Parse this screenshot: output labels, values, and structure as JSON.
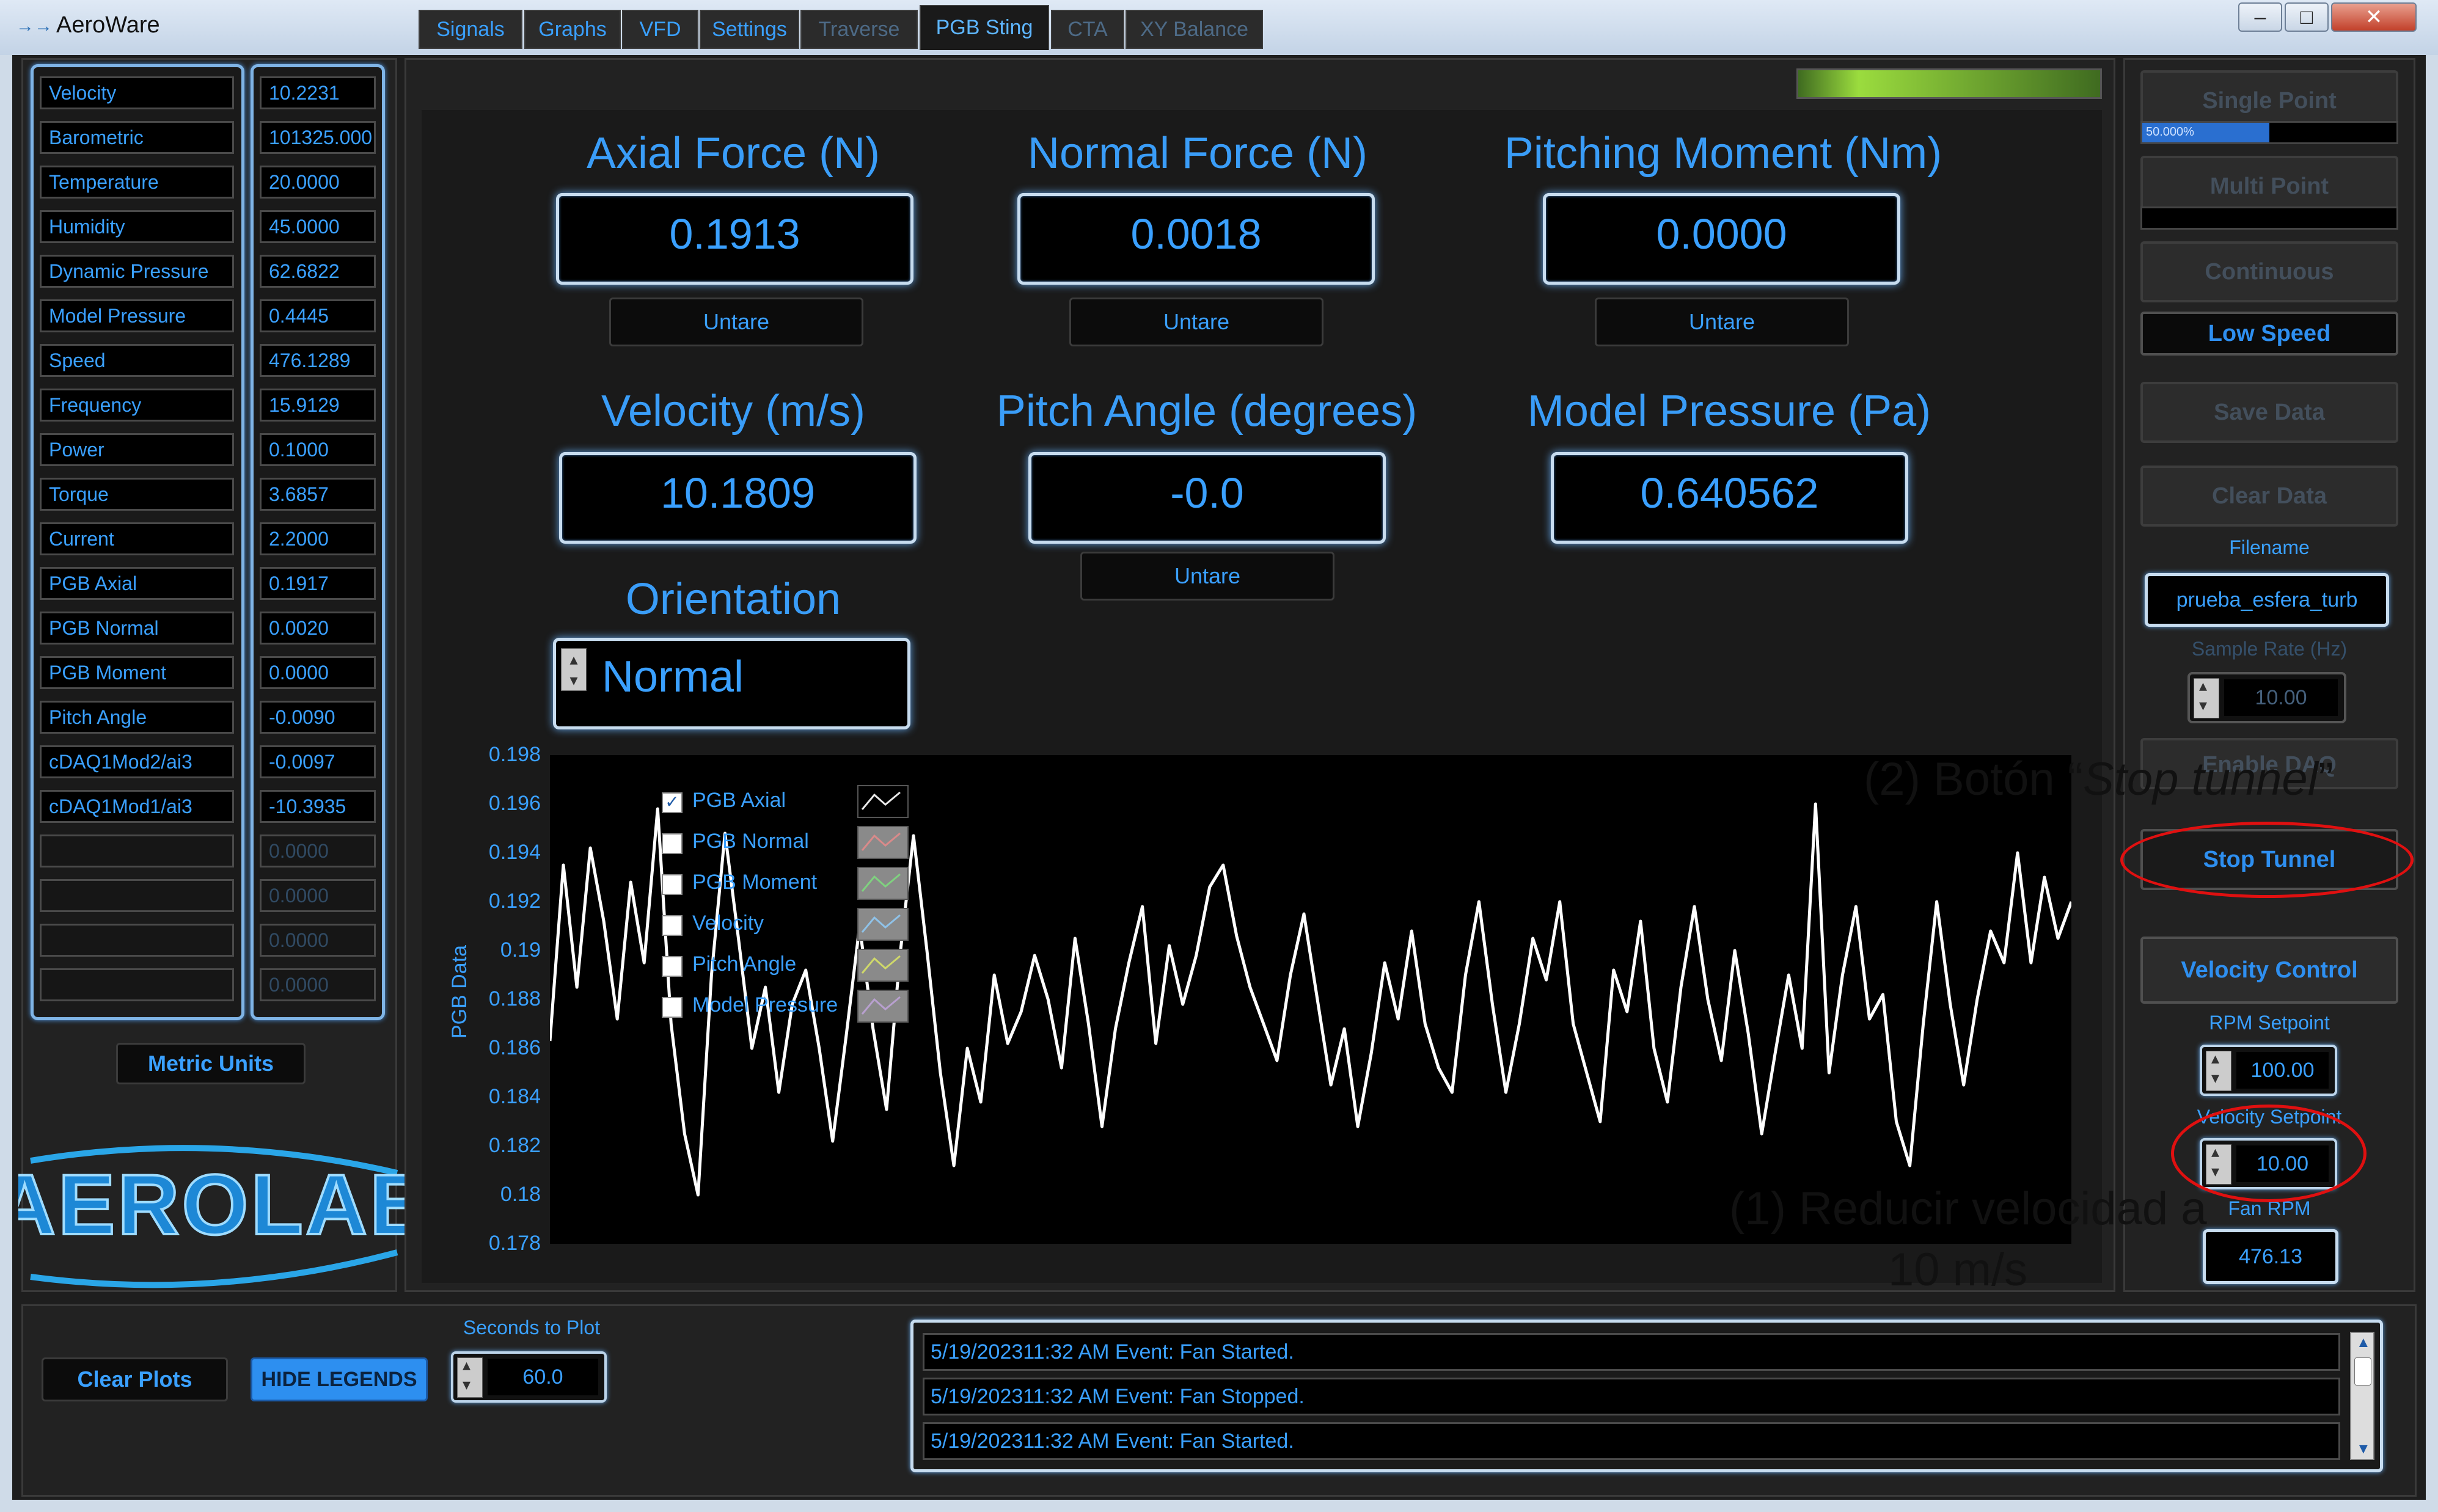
{
  "window": {
    "title": "AeroWare",
    "controls": [
      "minimize",
      "maximize",
      "close"
    ]
  },
  "channels": [
    {
      "label": "Velocity",
      "value": "10.2231"
    },
    {
      "label": "Barometric",
      "value": "101325.000"
    },
    {
      "label": "Temperature",
      "value": "20.0000"
    },
    {
      "label": "Humidity",
      "value": "45.0000"
    },
    {
      "label": "Dynamic Pressure",
      "value": "62.6822"
    },
    {
      "label": "Model Pressure",
      "value": "0.4445"
    },
    {
      "label": "Speed",
      "value": "476.1289"
    },
    {
      "label": "Frequency",
      "value": "15.9129"
    },
    {
      "label": "Power",
      "value": "0.1000"
    },
    {
      "label": "Torque",
      "value": "3.6857"
    },
    {
      "label": "Current",
      "value": "2.2000"
    },
    {
      "label": "PGB Axial",
      "value": "0.1917"
    },
    {
      "label": "PGB Normal",
      "value": "0.0020"
    },
    {
      "label": "PGB Moment",
      "value": "0.0000"
    },
    {
      "label": "Pitch Angle",
      "value": "-0.0090"
    },
    {
      "label": "cDAQ1Mod2/ai3",
      "value": "-0.0097"
    },
    {
      "label": "cDAQ1Mod1/ai3",
      "value": "-10.3935"
    },
    {
      "label": "",
      "value": "0.0000"
    },
    {
      "label": "",
      "value": "0.0000"
    },
    {
      "label": "",
      "value": "0.0000"
    },
    {
      "label": "",
      "value": "0.0000"
    }
  ],
  "units_button": "Metric Units",
  "logo": "AEROLAB",
  "tabs": [
    {
      "label": "Signals",
      "state": "normal"
    },
    {
      "label": "Graphs",
      "state": "normal"
    },
    {
      "label": "VFD",
      "state": "normal"
    },
    {
      "label": "Settings",
      "state": "normal"
    },
    {
      "label": "Traverse",
      "state": "dim"
    },
    {
      "label": "PGB Sting",
      "state": "active"
    },
    {
      "label": "CTA",
      "state": "dim"
    },
    {
      "label": "XY Balance",
      "state": "dim"
    }
  ],
  "pgb": {
    "axial": {
      "title": "Axial Force (N)",
      "value": "0.1913",
      "button": "Untare"
    },
    "normal": {
      "title": "Normal Force (N)",
      "value": "0.0018",
      "button": "Untare"
    },
    "moment": {
      "title": "Pitching Moment (Nm)",
      "value": "0.0000",
      "button": "Untare"
    },
    "velocity": {
      "title": "Velocity (m/s)",
      "value": "10.1809"
    },
    "pitch": {
      "title": "Pitch Angle (degrees)",
      "value": "-0.0",
      "button": "Untare"
    },
    "model_pressure": {
      "title": "Model Pressure (Pa)",
      "value": "0.640562"
    },
    "orientation": {
      "title": "Orientation",
      "value": "Normal"
    }
  },
  "chart_data": {
    "type": "line",
    "ylabel": "PGB Data",
    "ylim": [
      0.178,
      0.198
    ],
    "yticks": [
      "0.198",
      "0.196",
      "0.194",
      "0.192",
      "0.19",
      "0.188",
      "0.186",
      "0.184",
      "0.182",
      "0.18",
      "0.178"
    ],
    "legend": [
      {
        "name": "PGB Axial",
        "checked": true
      },
      {
        "name": "PGB Normal",
        "checked": false
      },
      {
        "name": "PGB Moment",
        "checked": false
      },
      {
        "name": "Velocity",
        "checked": false
      },
      {
        "name": "Pitch Angle",
        "checked": false
      },
      {
        "name": "Model Pressure",
        "checked": false
      }
    ],
    "series": [
      {
        "name": "PGB Axial",
        "color": "#ffffff",
        "values": [
          0.1863,
          0.1935,
          0.1885,
          0.1942,
          0.1912,
          0.1872,
          0.1928,
          0.1895,
          0.1958,
          0.187,
          0.1825,
          0.18,
          0.189,
          0.1948,
          0.1905,
          0.186,
          0.1885,
          0.1842,
          0.1878,
          0.1892,
          0.186,
          0.1822,
          0.1865,
          0.191,
          0.1868,
          0.1835,
          0.1898,
          0.1947,
          0.19,
          0.185,
          0.1812,
          0.186,
          0.1838,
          0.189,
          0.1862,
          0.1875,
          0.1898,
          0.188,
          0.1852,
          0.1905,
          0.187,
          0.1828,
          0.1868,
          0.1895,
          0.1918,
          0.1862,
          0.1902,
          0.1878,
          0.1898,
          0.1926,
          0.1935,
          0.1906,
          0.1885,
          0.187,
          0.1855,
          0.189,
          0.1915,
          0.188,
          0.1845,
          0.1868,
          0.1828,
          0.1858,
          0.1895,
          0.1872,
          0.1908,
          0.187,
          0.1852,
          0.1842,
          0.189,
          0.192,
          0.1878,
          0.1842,
          0.187,
          0.1905,
          0.1888,
          0.192,
          0.187,
          0.185,
          0.183,
          0.1892,
          0.1875,
          0.1912,
          0.186,
          0.1838,
          0.1885,
          0.1918,
          0.188,
          0.1855,
          0.19,
          0.1866,
          0.1825,
          0.1858,
          0.189,
          0.186,
          0.196,
          0.185,
          0.189,
          0.1918,
          0.1872,
          0.1882,
          0.183,
          0.1812,
          0.187,
          0.192,
          0.1878,
          0.1845,
          0.188,
          0.1908,
          0.1895,
          0.194,
          0.1895,
          0.193,
          0.1905,
          0.192
        ]
      }
    ]
  },
  "side": {
    "single_point": "Single Point",
    "single_progress_text": "50.000%",
    "single_progress": 0.5,
    "multi_point": "Multi Point",
    "multi_progress": 0.0,
    "continuous": "Continuous",
    "low_speed": "Low Speed",
    "save_data": "Save Data",
    "clear_data": "Clear Data",
    "filename_label": "Filename",
    "filename": "prueba_esfera_turb",
    "sample_rate_label": "Sample Rate (Hz)",
    "sample_rate": "10.00",
    "enable_daq": "Enable DAQ",
    "stop_tunnel": "Stop Tunnel",
    "velocity_control": "Velocity Control",
    "rpm_label": "RPM Setpoint",
    "rpm": "100.00",
    "vel_label": "Velocity Setpoint",
    "vel": "10.00",
    "fan_label": "Fan RPM",
    "fan": "476.13"
  },
  "bottom": {
    "clear_plots": "Clear Plots",
    "hide_legends": "HIDE LEGENDS",
    "seconds_label": "Seconds to Plot",
    "seconds": "60.0",
    "log": [
      "5/19/202311:32 AM Event: Fan Started.",
      "5/19/202311:32 AM Event: Fan Stopped.",
      "5/19/202311:32 AM Event: Fan Started."
    ]
  },
  "annotations": {
    "stop_prefix": "(2) Botón “",
    "stop_italic": "Stop tunnel",
    "stop_suffix": "”",
    "reduce_line1": "(1) Reducir velocidad a",
    "reduce_line2": "10 m/s",
    "highlight_color": "#e01010"
  }
}
